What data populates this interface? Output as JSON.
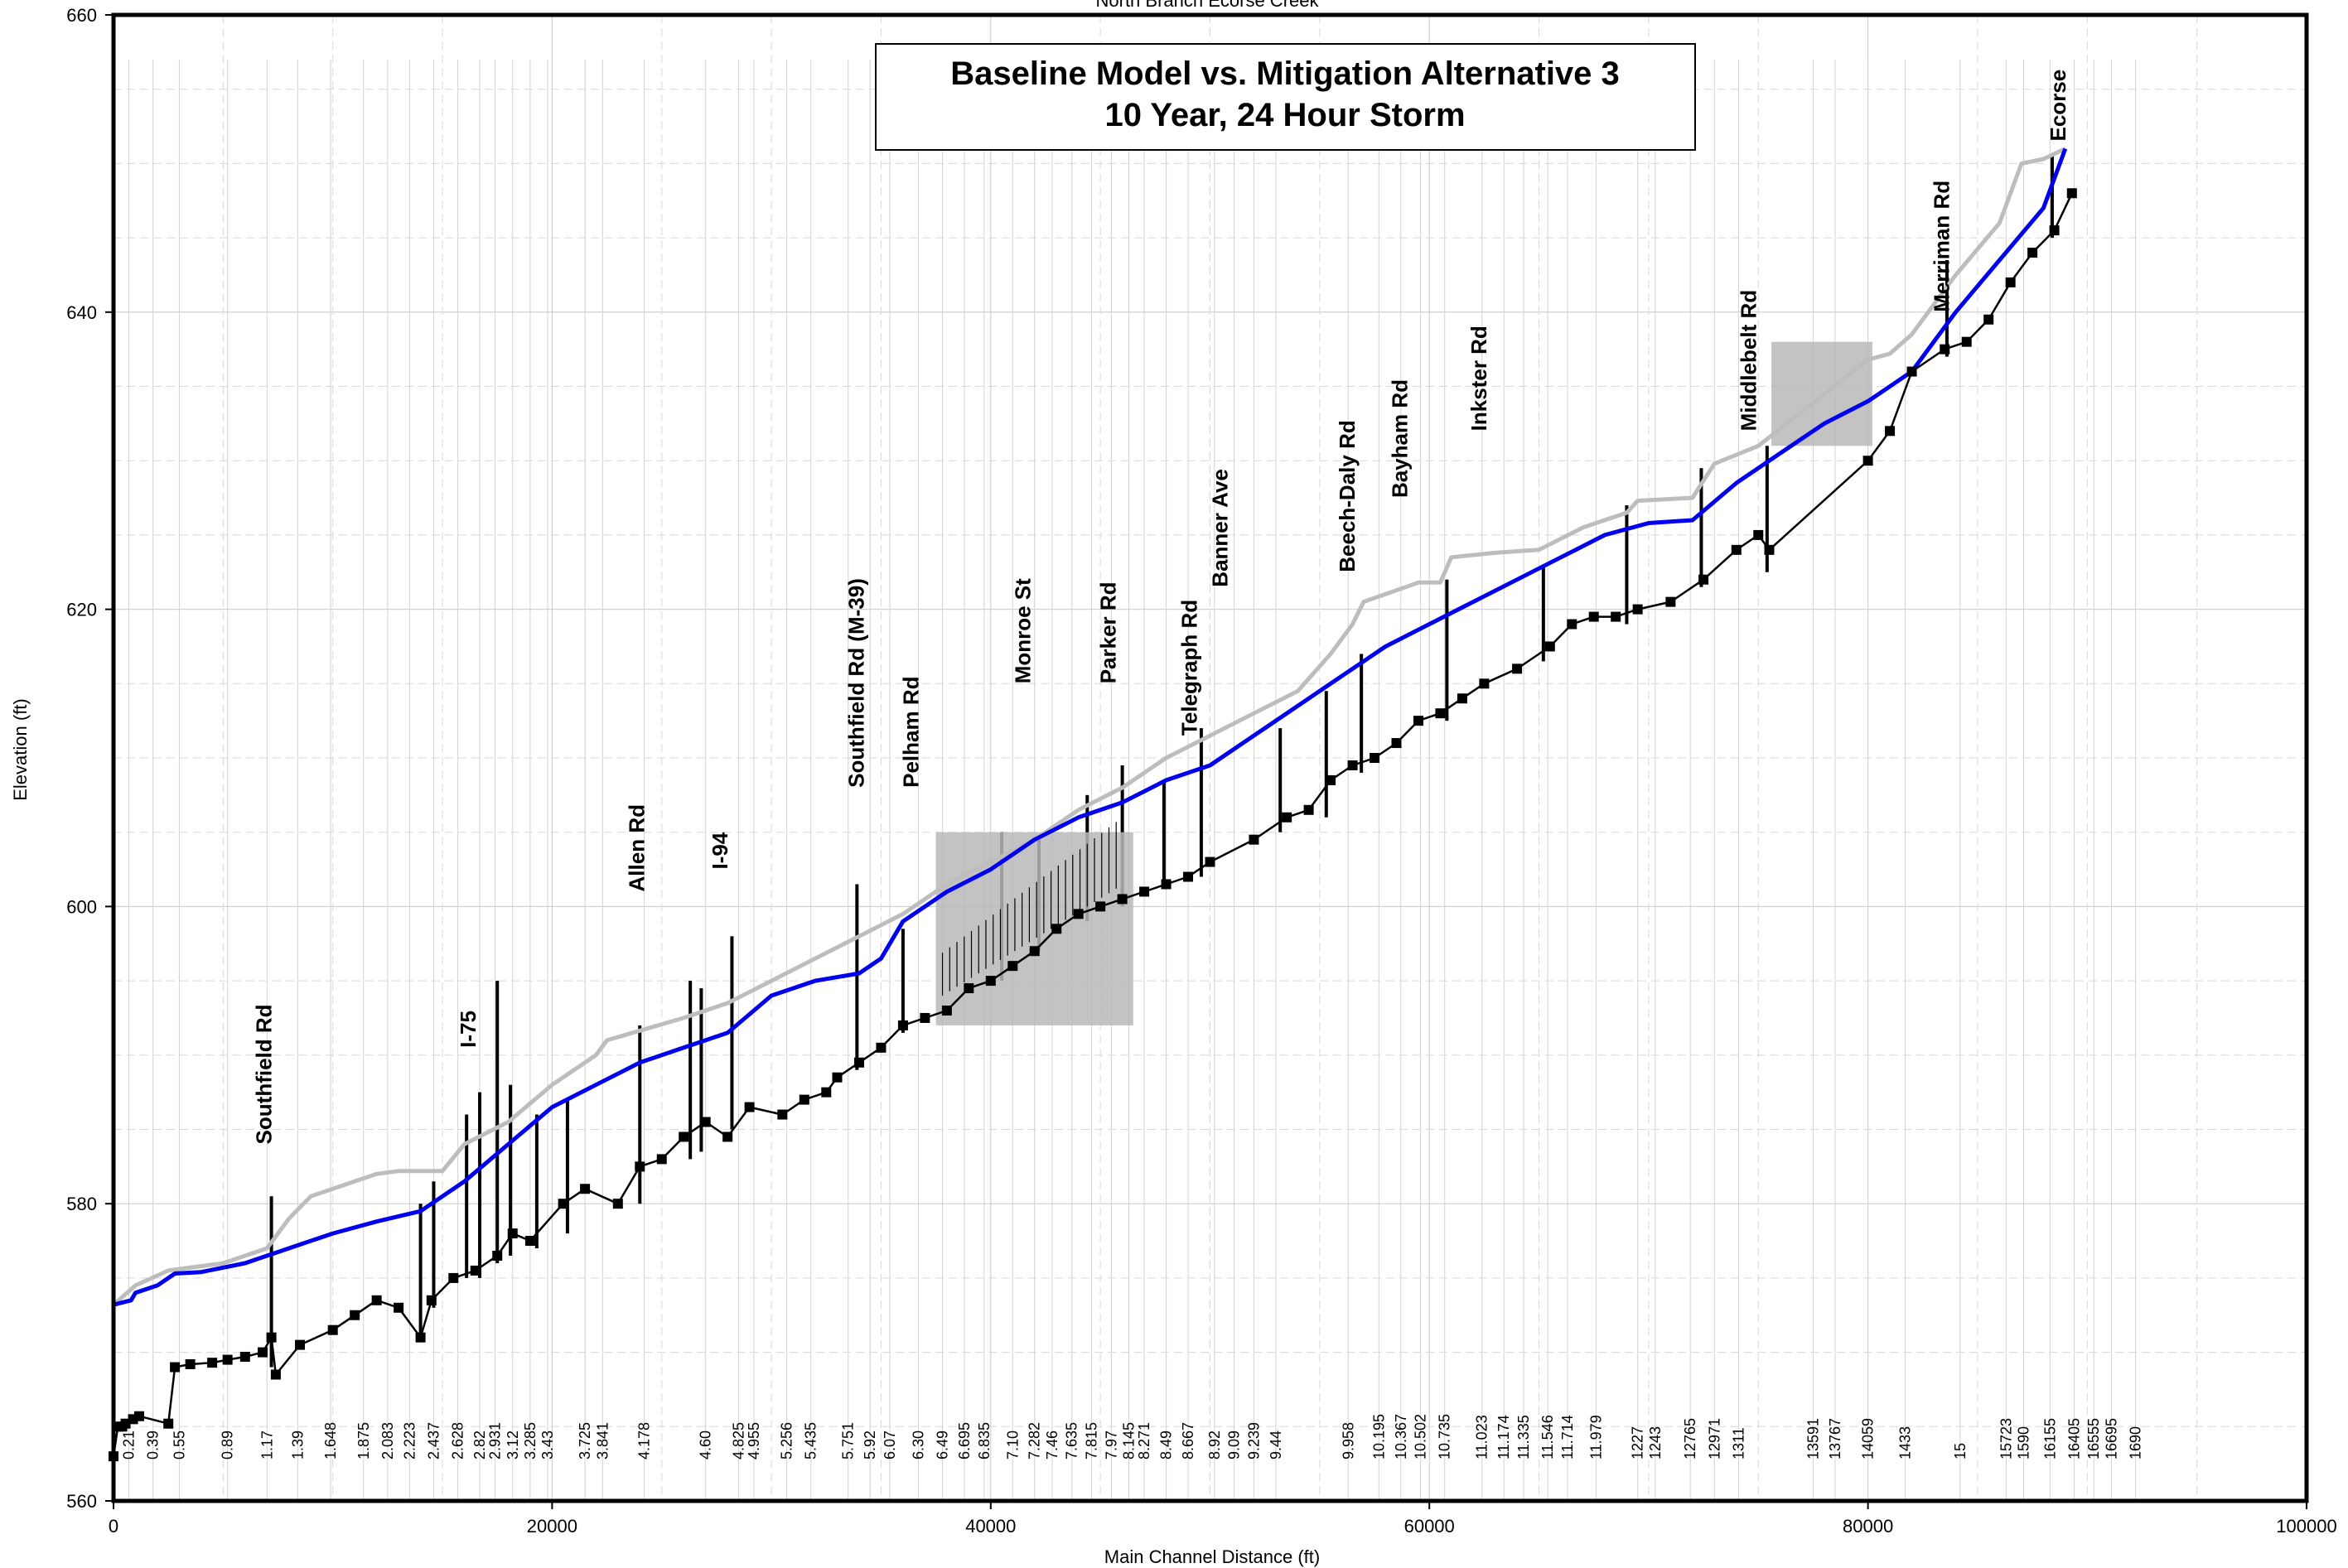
{
  "chart_data": {
    "type": "line",
    "top_label": "North Branch Ecorse Creek",
    "title": [
      "Baseline Model vs. Mitigation Alternative 3",
      "10 Year, 24 Hour Storm"
    ],
    "xlabel": "Main Channel Distance (ft)",
    "ylabel": "Elevation (ft)",
    "xlim": [
      0,
      100000
    ],
    "ylim": [
      560,
      660
    ],
    "x_ticks": [
      0,
      20000,
      40000,
      60000,
      80000,
      100000
    ],
    "y_ticks": [
      560,
      580,
      600,
      620,
      640,
      660
    ],
    "grid": true,
    "colors": {
      "baseline": "#bdbdbd",
      "alternative": "#0000ee",
      "channel": "#000000",
      "structure_fill": "#b8b8b8"
    },
    "series": [
      {
        "key": "baseline",
        "x": [
          0,
          1000,
          2500,
          5000,
          7000,
          8000,
          9000,
          12000,
          13000,
          15000,
          16000,
          18000,
          20000,
          22000,
          22500,
          26000,
          28000,
          30000,
          32000,
          34000,
          36000,
          38000,
          40000,
          42000,
          44000,
          46000,
          48000,
          50000,
          52000,
          54000,
          55500,
          56500,
          57000,
          59500,
          60500,
          61000,
          63000,
          65000,
          67000,
          69000,
          69500,
          72000,
          73000,
          75000,
          80000,
          81000,
          82000,
          84000,
          86000,
          87000,
          88000,
          89000
        ],
        "values": [
          573.2,
          574.5,
          575.5,
          576.0,
          577.0,
          579.0,
          580.5,
          582.0,
          582.2,
          582.2,
          584.0,
          585.5,
          588.0,
          590.0,
          591.0,
          592.5,
          593.5,
          595.0,
          596.5,
          598.0,
          599.5,
          601.5,
          603.0,
          604.5,
          606.5,
          608.0,
          610.0,
          611.5,
          613.0,
          614.5,
          617.0,
          619.0,
          620.5,
          621.8,
          621.8,
          623.5,
          623.8,
          624.0,
          625.5,
          626.5,
          627.3,
          627.5,
          629.8,
          631.0,
          636.8,
          637.2,
          638.5,
          642.5,
          646.0,
          650.0,
          650.3,
          651.0
        ]
      },
      {
        "key": "alternative",
        "x": [
          0,
          800,
          1000,
          2000,
          2800,
          4000,
          6000,
          8000,
          10000,
          12000,
          14000,
          16000,
          18000,
          20000,
          22000,
          24000,
          26000,
          28000,
          30000,
          32000,
          34000,
          35000,
          36000,
          37000,
          38000,
          40000,
          42000,
          44000,
          46000,
          48000,
          50000,
          52000,
          54000,
          56000,
          58000,
          60000,
          62000,
          64000,
          66000,
          68000,
          70000,
          72000,
          74000,
          76000,
          78000,
          80000,
          82000,
          84000,
          86000,
          88000,
          89000
        ],
        "values": [
          573.2,
          573.5,
          574.0,
          574.5,
          575.3,
          575.4,
          576.0,
          577.0,
          578.0,
          578.8,
          579.5,
          581.5,
          584.0,
          586.5,
          588.0,
          589.5,
          590.5,
          591.5,
          594.0,
          595.0,
          595.5,
          596.5,
          599.0,
          600.0,
          601.0,
          602.5,
          604.5,
          606.0,
          607.0,
          608.5,
          609.5,
          611.5,
          613.5,
          615.5,
          617.5,
          619.0,
          620.5,
          622.0,
          623.5,
          625.0,
          625.8,
          626.0,
          628.5,
          630.5,
          632.5,
          634.0,
          636.0,
          640.0,
          643.5,
          647.0,
          651.0
        ]
      },
      {
        "key": "channel",
        "x": [
          0,
          200,
          400,
          550,
          890,
          1170,
          2500,
          2800,
          3500,
          4500,
          5200,
          6000,
          6800,
          7200,
          7400,
          8500,
          10000,
          11000,
          12000,
          13000,
          14000,
          14500,
          15500,
          16500,
          17500,
          18200,
          19000,
          20500,
          21500,
          23000,
          24000,
          25000,
          26000,
          27000,
          28000,
          29000,
          30500,
          31500,
          32500,
          33000,
          34000,
          35000,
          36000,
          37000,
          38000,
          39000,
          40000,
          41000,
          42000,
          43000,
          44000,
          45000,
          46000,
          47000,
          48000,
          49000,
          50000,
          52000,
          53500,
          54500,
          55500,
          56500,
          57500,
          58500,
          59500,
          60500,
          61500,
          62500,
          64000,
          65500,
          66500,
          67500,
          68500,
          69500,
          71000,
          72500,
          74000,
          75000,
          75500,
          80000,
          81000,
          82000,
          83500,
          84500,
          85500,
          86500,
          87500,
          88500,
          89300
        ],
        "values": [
          563.0,
          565.0,
          565.0,
          565.2,
          565.5,
          565.7,
          565.2,
          569.0,
          569.2,
          569.3,
          569.5,
          569.7,
          570.0,
          571.0,
          568.5,
          570.5,
          571.5,
          572.5,
          573.5,
          573.0,
          571.0,
          573.5,
          575.0,
          575.5,
          576.5,
          578.0,
          577.5,
          580.0,
          581.0,
          580.0,
          582.5,
          583.0,
          584.5,
          585.5,
          584.5,
          586.5,
          586.0,
          587.0,
          587.5,
          588.5,
          589.5,
          590.5,
          592.0,
          592.5,
          593.0,
          594.5,
          595.0,
          596.0,
          597.0,
          598.5,
          599.5,
          600.0,
          600.5,
          601.0,
          601.5,
          602.0,
          603.0,
          604.5,
          606.0,
          606.5,
          608.5,
          609.5,
          610.0,
          611.0,
          612.5,
          613.0,
          614.0,
          615.0,
          616.0,
          617.5,
          619.0,
          619.5,
          619.5,
          620.0,
          620.5,
          622.0,
          624.0,
          625.0,
          624.0,
          630.0,
          632.0,
          636.0,
          637.5,
          638.0,
          639.5,
          642.0,
          644.0,
          645.5,
          648.0
        ]
      }
    ],
    "structures": [
      {
        "x": 7200,
        "top": 580.5,
        "bottom": 569
      },
      {
        "x": 14000,
        "top": 580,
        "bottom": 571
      },
      {
        "x": 14600,
        "top": 581.5,
        "bottom": 573
      },
      {
        "x": 16100,
        "top": 586,
        "bottom": 575
      },
      {
        "x": 16700,
        "top": 587.5,
        "bottom": 575
      },
      {
        "x": 17500,
        "top": 595,
        "bottom": 576
      },
      {
        "x": 18100,
        "top": 588,
        "bottom": 576.5
      },
      {
        "x": 19300,
        "top": 586,
        "bottom": 577
      },
      {
        "x": 20700,
        "top": 587,
        "bottom": 578
      },
      {
        "x": 24000,
        "top": 592,
        "bottom": 580
      },
      {
        "x": 26300,
        "top": 595,
        "bottom": 583
      },
      {
        "x": 26800,
        "top": 594.5,
        "bottom": 583.5
      },
      {
        "x": 28200,
        "top": 598,
        "bottom": 585
      },
      {
        "x": 33900,
        "top": 601.5,
        "bottom": 589
      },
      {
        "x": 36000,
        "top": 598.5,
        "bottom": 591.5
      },
      {
        "x": 40500,
        "top": 605,
        "bottom": 595
      },
      {
        "x": 42200,
        "top": 604.5,
        "bottom": 597
      },
      {
        "x": 44400,
        "top": 607.5,
        "bottom": 599
      },
      {
        "x": 46000,
        "top": 609.5,
        "bottom": 600
      },
      {
        "x": 47900,
        "top": 608.5,
        "bottom": 601.5
      },
      {
        "x": 49600,
        "top": 612,
        "bottom": 602
      },
      {
        "x": 53200,
        "top": 612,
        "bottom": 605
      },
      {
        "x": 55300,
        "top": 614.5,
        "bottom": 606
      },
      {
        "x": 56900,
        "top": 617,
        "bottom": 609
      },
      {
        "x": 60800,
        "top": 622,
        "bottom": 612.5
      },
      {
        "x": 65200,
        "top": 623,
        "bottom": 616.5
      },
      {
        "x": 69000,
        "top": 627,
        "bottom": 619
      },
      {
        "x": 72400,
        "top": 629.5,
        "bottom": 621.5
      },
      {
        "x": 75400,
        "top": 631,
        "bottom": 622.5
      },
      {
        "x": 83600,
        "top": 643.5,
        "bottom": 637
      },
      {
        "x": 88400,
        "top": 650.5,
        "bottom": 645
      }
    ],
    "road_labels": [
      {
        "text": "Southfield Rd",
        "x": 7200,
        "y": 584
      },
      {
        "text": "I-75",
        "x": 16500,
        "y": 590.5
      },
      {
        "text": "Allen Rd",
        "x": 24200,
        "y": 601
      },
      {
        "text": "I-94",
        "x": 28000,
        "y": 602.5
      },
      {
        "text": "Southfield Rd (M-39)",
        "x": 34200,
        "y": 608
      },
      {
        "text": "Pelham Rd",
        "x": 36700,
        "y": 608
      },
      {
        "text": "Monroe St",
        "x": 41800,
        "y": 615
      },
      {
        "text": "Parker Rd",
        "x": 45700,
        "y": 615
      },
      {
        "text": "Telegraph Rd",
        "x": 49400,
        "y": 611.5
      },
      {
        "text": "Banner Ave",
        "x": 50800,
        "y": 621.5
      },
      {
        "text": "Beech-Daly Rd",
        "x": 56600,
        "y": 622.5
      },
      {
        "text": "Bayham Rd",
        "x": 59000,
        "y": 627.5
      },
      {
        "text": "Inkster Rd",
        "x": 62600,
        "y": 632
      },
      {
        "text": "Middlebelt Rd",
        "x": 74900,
        "y": 632
      },
      {
        "text": "Merriman Rd",
        "x": 83700,
        "y": 640
      },
      {
        "text": "Ecorse",
        "x": 89000,
        "y": 651.5
      }
    ],
    "station_labels": [
      {
        "text": "0.21",
        "x": 700
      },
      {
        "text": "0.39",
        "x": 1800
      },
      {
        "text": "0.55",
        "x": 3000
      },
      {
        "text": "0.89",
        "x": 5200
      },
      {
        "text": "1.17",
        "x": 7000
      },
      {
        "text": "1.39",
        "x": 8400
      },
      {
        "text": "1.648",
        "x": 9900
      },
      {
        "text": "1.875",
        "x": 11400
      },
      {
        "text": "2.083",
        "x": 12500
      },
      {
        "text": "2.223",
        "x": 13500
      },
      {
        "text": "2.437",
        "x": 14600
      },
      {
        "text": "2.628",
        "x": 15700
      },
      {
        "text": "2.82",
        "x": 16700
      },
      {
        "text": "2.931",
        "x": 17400
      },
      {
        "text": "3.12",
        "x": 18200
      },
      {
        "text": "3.285",
        "x": 19000
      },
      {
        "text": "3.43",
        "x": 19800
      },
      {
        "text": "3.725",
        "x": 21500
      },
      {
        "text": "3.841",
        "x": 22300
      },
      {
        "text": "4.178",
        "x": 24200
      },
      {
        "text": "4.60",
        "x": 27000
      },
      {
        "text": "4.825",
        "x": 28500
      },
      {
        "text": "4.955",
        "x": 29200
      },
      {
        "text": "5.256",
        "x": 30700
      },
      {
        "text": "5.435",
        "x": 31800
      },
      {
        "text": "5.751",
        "x": 33500
      },
      {
        "text": "5.92",
        "x": 34500
      },
      {
        "text": "6.07",
        "x": 35400
      },
      {
        "text": "6.30",
        "x": 36700
      },
      {
        "text": "6.49",
        "x": 37800
      },
      {
        "text": "6.695",
        "x": 38800
      },
      {
        "text": "6.835",
        "x": 39700
      },
      {
        "text": "7.10",
        "x": 41000
      },
      {
        "text": "7.282",
        "x": 42000
      },
      {
        "text": "7.46",
        "x": 42800
      },
      {
        "text": "7.635",
        "x": 43700
      },
      {
        "text": "7.815",
        "x": 44600
      },
      {
        "text": "7.97",
        "x": 45500
      },
      {
        "text": "8.145",
        "x": 46300
      },
      {
        "text": "8.271",
        "x": 47000
      },
      {
        "text": "8.49",
        "x": 48000
      },
      {
        "text": "8.667",
        "x": 49000
      },
      {
        "text": "8.92",
        "x": 50200
      },
      {
        "text": "9.09",
        "x": 51100
      },
      {
        "text": "9.239",
        "x": 52000
      },
      {
        "text": "9.44",
        "x": 53000
      },
      {
        "text": "9.958",
        "x": 56300
      },
      {
        "text": "10.195",
        "x": 57700
      },
      {
        "text": "10.367",
        "x": 58700
      },
      {
        "text": "10.502",
        "x": 59600
      },
      {
        "text": "10.735",
        "x": 60700
      },
      {
        "text": "11.023",
        "x": 62400
      },
      {
        "text": "11.174",
        "x": 63400
      },
      {
        "text": "11.335",
        "x": 64300
      },
      {
        "text": "11.546",
        "x": 65400
      },
      {
        "text": "11.714",
        "x": 66300
      },
      {
        "text": "11.979",
        "x": 67600
      },
      {
        "text": "1227",
        "x": 69500
      },
      {
        "text": "1243",
        "x": 70300
      },
      {
        "text": "12765",
        "x": 71900
      },
      {
        "text": "12971",
        "x": 73000
      },
      {
        "text": "1311",
        "x": 74100
      },
      {
        "text": "13591",
        "x": 77500
      },
      {
        "text": "13767",
        "x": 78500
      },
      {
        "text": "14059",
        "x": 80000
      },
      {
        "text": "1433",
        "x": 81700
      },
      {
        "text": "15",
        "x": 84200
      },
      {
        "text": "15723",
        "x": 86300
      },
      {
        "text": "1590",
        "x": 87100
      },
      {
        "text": "16155",
        "x": 88300
      },
      {
        "text": "16405",
        "x": 89400
      },
      {
        "text": "16555",
        "x": 90300
      },
      {
        "text": "16695",
        "x": 91100
      },
      {
        "text": "1690",
        "x": 92200
      }
    ]
  }
}
